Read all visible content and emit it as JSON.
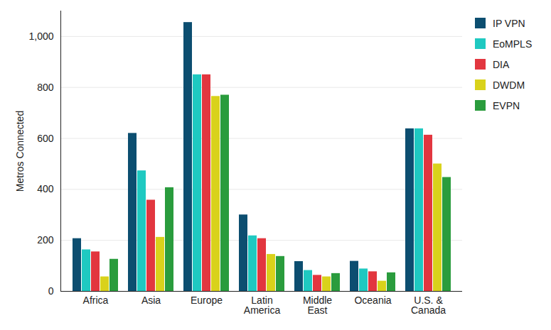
{
  "chart_data": {
    "type": "bar",
    "categories": [
      "Africa",
      "Asia",
      "Europe",
      "Latin America",
      "Middle East",
      "Oceania",
      "U.S. & Canada"
    ],
    "series": [
      {
        "name": "IP VPN",
        "color": "#0c4e70",
        "values": [
          207,
          620,
          1055,
          300,
          117,
          118,
          638
        ]
      },
      {
        "name": "EoMPLS",
        "color": "#1fc9c1",
        "values": [
          163,
          473,
          850,
          218,
          82,
          88,
          638
        ]
      },
      {
        "name": "DIA",
        "color": "#e2363f",
        "values": [
          155,
          358,
          850,
          207,
          63,
          77,
          613
        ]
      },
      {
        "name": "DWDM",
        "color": "#d9d21b",
        "values": [
          57,
          212,
          765,
          145,
          57,
          40,
          500
        ]
      },
      {
        "name": "EVPN",
        "color": "#2a9c3d",
        "values": [
          126,
          407,
          770,
          137,
          70,
          73,
          447
        ]
      }
    ],
    "ylabel": "Metros Connected",
    "ylim": [
      0,
      1100
    ],
    "yticks": [
      0,
      200,
      400,
      600,
      800,
      {
        "value": 1000,
        "label": "1,000"
      }
    ],
    "grid": true,
    "legend": "top-right"
  }
}
